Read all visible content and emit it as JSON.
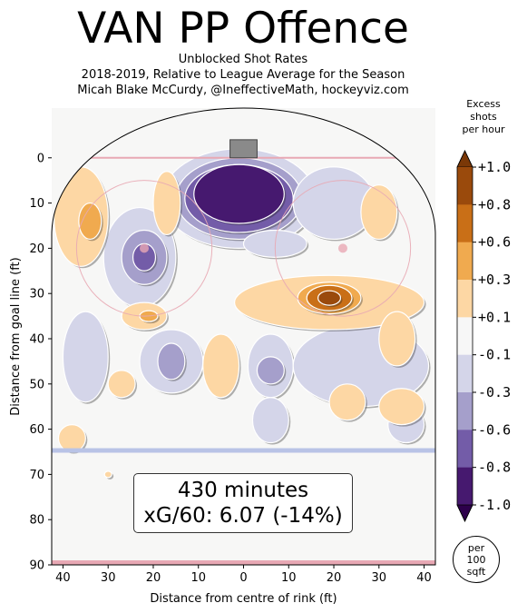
{
  "header": {
    "title": "VAN PP Offence",
    "subtitle_lines": [
      "Unblocked Shot Rates",
      "2018-2019, Relative to League Average for the Season",
      "Micah Blake McCurdy, @IneffectiveMath, hockeyviz.com"
    ]
  },
  "info": {
    "minutes": "430 minutes",
    "xg": "xG/60: 6.07 (-14%)"
  },
  "unit_note": {
    "lines": [
      "per",
      "100",
      "sqft"
    ]
  },
  "colors": {
    "background": "#f7f7f6",
    "goal_line": "#e8a8b4",
    "blue_line": "#b9c3e6",
    "neg_dark": "#3f0f66",
    "pos_dark": "#8a3a08"
  },
  "chart_data": {
    "type": "heatmap",
    "xlabel": "Distance from centre of rink (ft)",
    "ylabel": "Distance from goal line (ft)",
    "xlim": [
      -42.5,
      42.5
    ],
    "ylim": [
      90,
      -11
    ],
    "x_ticks": [
      "40",
      "30",
      "20",
      "10",
      "0",
      "10",
      "20",
      "30",
      "40"
    ],
    "x_tick_values": [
      -40,
      -30,
      -20,
      -10,
      0,
      10,
      20,
      30,
      40
    ],
    "y_ticks": [
      "0",
      "10",
      "20",
      "30",
      "40",
      "50",
      "60",
      "70",
      "80",
      "90"
    ],
    "y_tick_values": [
      0,
      10,
      20,
      30,
      40,
      50,
      60,
      70,
      80,
      90
    ],
    "colorbar": {
      "title_lines": [
        "Excess",
        "shots",
        "per hour"
      ],
      "labels": [
        "+1.0",
        "+0.8",
        "+0.6",
        "+0.3",
        "+0.1",
        "-0.1",
        "-0.3",
        "-0.6",
        "-0.8",
        "-1.0"
      ],
      "bins": [
        {
          "color": "#9a4a0c"
        },
        {
          "color": "#c96f17"
        },
        {
          "color": "#f0aa4f"
        },
        {
          "color": "#fdd7a4"
        },
        {
          "color": "#f7f7f7"
        },
        {
          "color": "#d4d5e9"
        },
        {
          "color": "#a59fcb"
        },
        {
          "color": "#735ca8"
        },
        {
          "color": "#46196f"
        }
      ],
      "top_arrow_color": "#7a3807",
      "bottom_arrow_color": "#2d004b"
    },
    "regions": [
      {
        "kind": "neg",
        "level": 1,
        "cx": -1,
        "cy": 9,
        "rx": 17,
        "ry": 11
      },
      {
        "kind": "neg",
        "level": 2,
        "cx": -1,
        "cy": 9,
        "rx": 14,
        "ry": 9
      },
      {
        "kind": "neg",
        "level": 3,
        "cx": -1,
        "cy": 9,
        "rx": 12,
        "ry": 7.5
      },
      {
        "kind": "neg",
        "level": 4,
        "cx": -1,
        "cy": 8,
        "rx": 10,
        "ry": 6.5
      },
      {
        "kind": "neg",
        "level": 1,
        "cx": 20,
        "cy": 10,
        "rx": 9,
        "ry": 8
      },
      {
        "kind": "neg",
        "level": 1,
        "cx": -23,
        "cy": 22,
        "rx": 8,
        "ry": 11
      },
      {
        "kind": "neg",
        "level": 2,
        "cx": -22,
        "cy": 22,
        "rx": 5,
        "ry": 6
      },
      {
        "kind": "neg",
        "level": 3,
        "cx": -22,
        "cy": 22,
        "rx": 2.5,
        "ry": 3
      },
      {
        "kind": "neg",
        "level": 1,
        "cx": -35,
        "cy": 44,
        "rx": 5,
        "ry": 10
      },
      {
        "kind": "neg",
        "level": 1,
        "cx": -16,
        "cy": 45,
        "rx": 7,
        "ry": 7
      },
      {
        "kind": "neg",
        "level": 2,
        "cx": -16,
        "cy": 45,
        "rx": 3,
        "ry": 4
      },
      {
        "kind": "neg",
        "level": 1,
        "cx": 6,
        "cy": 46,
        "rx": 5,
        "ry": 7
      },
      {
        "kind": "neg",
        "level": 1,
        "cx": 6,
        "cy": 58,
        "rx": 4,
        "ry": 5
      },
      {
        "kind": "neg",
        "level": 1,
        "cx": 7,
        "cy": 19,
        "rx": 7,
        "ry": 3
      },
      {
        "kind": "neg",
        "level": 1,
        "cx": 26,
        "cy": 46,
        "rx": 15,
        "ry": 9
      },
      {
        "kind": "neg",
        "level": 2,
        "cx": 6,
        "cy": 47,
        "rx": 3,
        "ry": 3
      },
      {
        "kind": "neg",
        "level": 1,
        "cx": 36,
        "cy": 59,
        "rx": 4,
        "ry": 4
      },
      {
        "kind": "pos",
        "level": 1,
        "cx": -36,
        "cy": 13,
        "rx": 6,
        "ry": 11
      },
      {
        "kind": "pos",
        "level": 2,
        "cx": -34,
        "cy": 14,
        "rx": 2.5,
        "ry": 4
      },
      {
        "kind": "pos",
        "level": 1,
        "cx": -17,
        "cy": 10,
        "rx": 3,
        "ry": 7
      },
      {
        "kind": "pos",
        "level": 1,
        "cx": -22,
        "cy": 35,
        "rx": 5,
        "ry": 3
      },
      {
        "kind": "pos",
        "level": 2,
        "cx": -21,
        "cy": 35,
        "rx": 2,
        "ry": 1.2
      },
      {
        "kind": "pos",
        "level": 1,
        "cx": 19,
        "cy": 32,
        "rx": 21,
        "ry": 6
      },
      {
        "kind": "pos",
        "level": 2,
        "cx": 19,
        "cy": 31,
        "rx": 7,
        "ry": 3.5
      },
      {
        "kind": "pos",
        "level": 3,
        "cx": 19,
        "cy": 31,
        "rx": 5,
        "ry": 2.8
      },
      {
        "kind": "pos",
        "level": 4,
        "cx": 19,
        "cy": 31,
        "rx": 2.5,
        "ry": 1.6
      },
      {
        "kind": "pos",
        "level": 1,
        "cx": 30,
        "cy": 12,
        "rx": 4,
        "ry": 6
      },
      {
        "kind": "pos",
        "level": 1,
        "cx": -27,
        "cy": 50,
        "rx": 3,
        "ry": 3
      },
      {
        "kind": "pos",
        "level": 1,
        "cx": -5,
        "cy": 46,
        "rx": 4,
        "ry": 7
      },
      {
        "kind": "pos",
        "level": 1,
        "cx": 34,
        "cy": 40,
        "rx": 4,
        "ry": 6
      },
      {
        "kind": "pos",
        "level": 1,
        "cx": 23,
        "cy": 54,
        "rx": 4,
        "ry": 4
      },
      {
        "kind": "pos",
        "level": 1,
        "cx": 35,
        "cy": 55,
        "rx": 5,
        "ry": 4
      },
      {
        "kind": "pos",
        "level": 1,
        "cx": -38,
        "cy": 62,
        "rx": 3,
        "ry": 3
      },
      {
        "kind": "pos",
        "level": 1,
        "cx": -30,
        "cy": 70,
        "rx": 0.8,
        "ry": 0.7
      }
    ]
  }
}
